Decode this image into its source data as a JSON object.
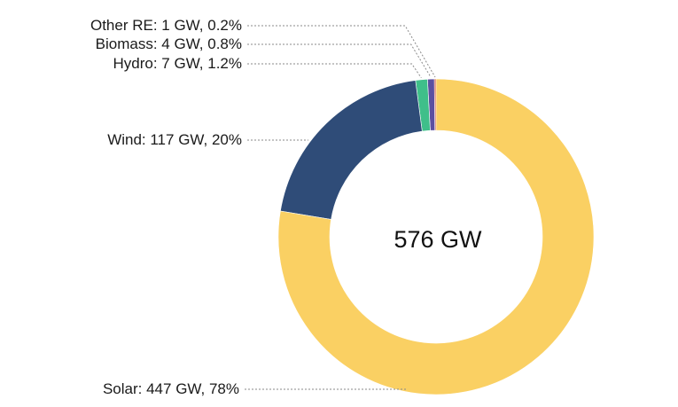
{
  "chart_data": {
    "type": "pie",
    "variant": "donut",
    "center_label": "576 GW",
    "slices": [
      {
        "name": "Solar",
        "value": 447,
        "unit": "GW",
        "percent": 78,
        "label": "Solar: 447 GW, 78%",
        "color": "#FAD063"
      },
      {
        "name": "Wind",
        "value": 117,
        "unit": "GW",
        "percent": 20,
        "label": "Wind: 117 GW, 20%",
        "color": "#2F4C78"
      },
      {
        "name": "Hydro",
        "value": 7,
        "unit": "GW",
        "percent": 1.2,
        "label": "Hydro: 7 GW, 1.2%",
        "color": "#3FBF8A"
      },
      {
        "name": "Biomass",
        "value": 4,
        "unit": "GW",
        "percent": 0.8,
        "label": "Biomass: 4 GW, 0.8%",
        "color": "#5B4FA0"
      },
      {
        "name": "Other RE",
        "value": 1,
        "unit": "GW",
        "percent": 0.2,
        "label": "Other RE: 1 GW, 0.2%",
        "color": "#D0553F"
      }
    ]
  }
}
